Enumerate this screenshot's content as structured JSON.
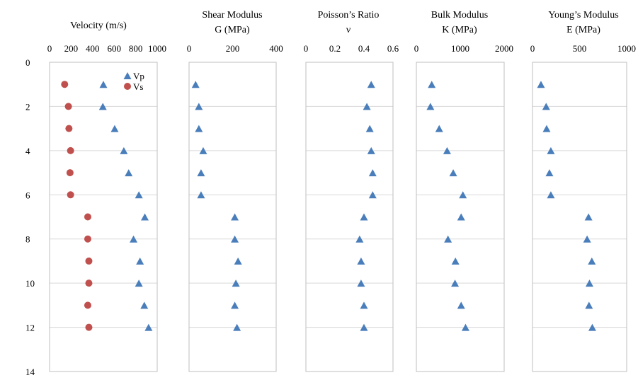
{
  "chart_data": [
    {
      "type": "scatter",
      "title": [
        "Velocity (m/s)"
      ],
      "xlim": [
        0,
        1000
      ],
      "xticks": [
        0,
        200,
        400,
        600,
        800,
        1000
      ],
      "xtick_labels": [
        "0",
        "200",
        "400",
        "600",
        "800",
        "1000"
      ],
      "ylim": [
        0,
        14
      ],
      "yticks": [
        0,
        2,
        4,
        6,
        8,
        10,
        12,
        14
      ],
      "ytick_labels": [
        "0",
        "2",
        "4",
        "6",
        "8",
        "10",
        "12",
        "14"
      ],
      "grid": "horizontal",
      "legend": "top-right",
      "series": [
        {
          "name": "Vp",
          "marker": "triangle",
          "color": "#4A7EBB",
          "points": [
            [
              500,
              1
            ],
            [
              495,
              2
            ],
            [
              605,
              3
            ],
            [
              690,
              4
            ],
            [
              735,
              5
            ],
            [
              830,
              6
            ],
            [
              885,
              7
            ],
            [
              780,
              8
            ],
            [
              840,
              9
            ],
            [
              830,
              10
            ],
            [
              880,
              11
            ],
            [
              920,
              12
            ]
          ]
        },
        {
          "name": "Vs",
          "marker": "circle",
          "color": "#C0504D",
          "points": [
            [
              140,
              1
            ],
            [
              175,
              2
            ],
            [
              180,
              3
            ],
            [
              195,
              4
            ],
            [
              190,
              5
            ],
            [
              195,
              6
            ],
            [
              355,
              7
            ],
            [
              355,
              8
            ],
            [
              365,
              9
            ],
            [
              365,
              10
            ],
            [
              355,
              11
            ],
            [
              365,
              12
            ]
          ]
        }
      ]
    },
    {
      "type": "scatter",
      "title": [
        "Shear Modulus",
        "G (MPa)"
      ],
      "xlim": [
        0,
        400
      ],
      "xticks": [
        0,
        200,
        400
      ],
      "xtick_labels": [
        "0",
        "200",
        "400"
      ],
      "ylim": [
        0,
        14
      ],
      "grid": "horizontal",
      "series": [
        {
          "marker": "triangle",
          "color": "#4A7EBB",
          "points": [
            [
              30,
              1
            ],
            [
              45,
              2
            ],
            [
              45,
              3
            ],
            [
              65,
              4
            ],
            [
              55,
              5
            ],
            [
              55,
              6
            ],
            [
              210,
              7
            ],
            [
              210,
              8
            ],
            [
              225,
              9
            ],
            [
              215,
              10
            ],
            [
              210,
              11
            ],
            [
              220,
              12
            ]
          ]
        }
      ]
    },
    {
      "type": "scatter",
      "title": [
        "Poisson’s Ratio",
        "ν"
      ],
      "xlim": [
        0,
        0.6
      ],
      "xticks": [
        0,
        0.2,
        0.4,
        0.6
      ],
      "xtick_labels": [
        "0",
        "0.2",
        "0.4",
        "0.6"
      ],
      "ylim": [
        0,
        14
      ],
      "grid": "horizontal",
      "series": [
        {
          "marker": "triangle",
          "color": "#4A7EBB",
          "points": [
            [
              0.45,
              1
            ],
            [
              0.42,
              2
            ],
            [
              0.44,
              3
            ],
            [
              0.45,
              4
            ],
            [
              0.46,
              5
            ],
            [
              0.46,
              6
            ],
            [
              0.4,
              7
            ],
            [
              0.37,
              8
            ],
            [
              0.38,
              9
            ],
            [
              0.38,
              10
            ],
            [
              0.4,
              11
            ],
            [
              0.4,
              12
            ]
          ]
        }
      ]
    },
    {
      "type": "scatter",
      "title": [
        "Bulk Modulus",
        "K (MPa)"
      ],
      "xlim": [
        0,
        2000
      ],
      "xticks": [
        0,
        1000,
        2000
      ],
      "xtick_labels": [
        "0",
        "1000",
        "2000"
      ],
      "ylim": [
        0,
        14
      ],
      "grid": "horizontal",
      "series": [
        {
          "marker": "triangle",
          "color": "#4A7EBB",
          "points": [
            [
              350,
              1
            ],
            [
              320,
              2
            ],
            [
              520,
              3
            ],
            [
              700,
              4
            ],
            [
              840,
              5
            ],
            [
              1060,
              6
            ],
            [
              1020,
              7
            ],
            [
              720,
              8
            ],
            [
              890,
              9
            ],
            [
              880,
              10
            ],
            [
              1020,
              11
            ],
            [
              1120,
              12
            ]
          ]
        }
      ]
    },
    {
      "type": "scatter",
      "title": [
        "Young’s Modulus",
        "E (MPa)"
      ],
      "xlim": [
        0,
        1000
      ],
      "xticks": [
        0,
        500,
        1000
      ],
      "xtick_labels": [
        "0",
        "500",
        "1000"
      ],
      "ylim": [
        0,
        14
      ],
      "grid": "horizontal",
      "series": [
        {
          "marker": "triangle",
          "color": "#4A7EBB",
          "points": [
            [
              90,
              1
            ],
            [
              145,
              2
            ],
            [
              150,
              3
            ],
            [
              195,
              4
            ],
            [
              180,
              5
            ],
            [
              195,
              6
            ],
            [
              595,
              7
            ],
            [
              580,
              8
            ],
            [
              630,
              9
            ],
            [
              605,
              10
            ],
            [
              600,
              11
            ],
            [
              635,
              12
            ]
          ]
        }
      ]
    }
  ]
}
